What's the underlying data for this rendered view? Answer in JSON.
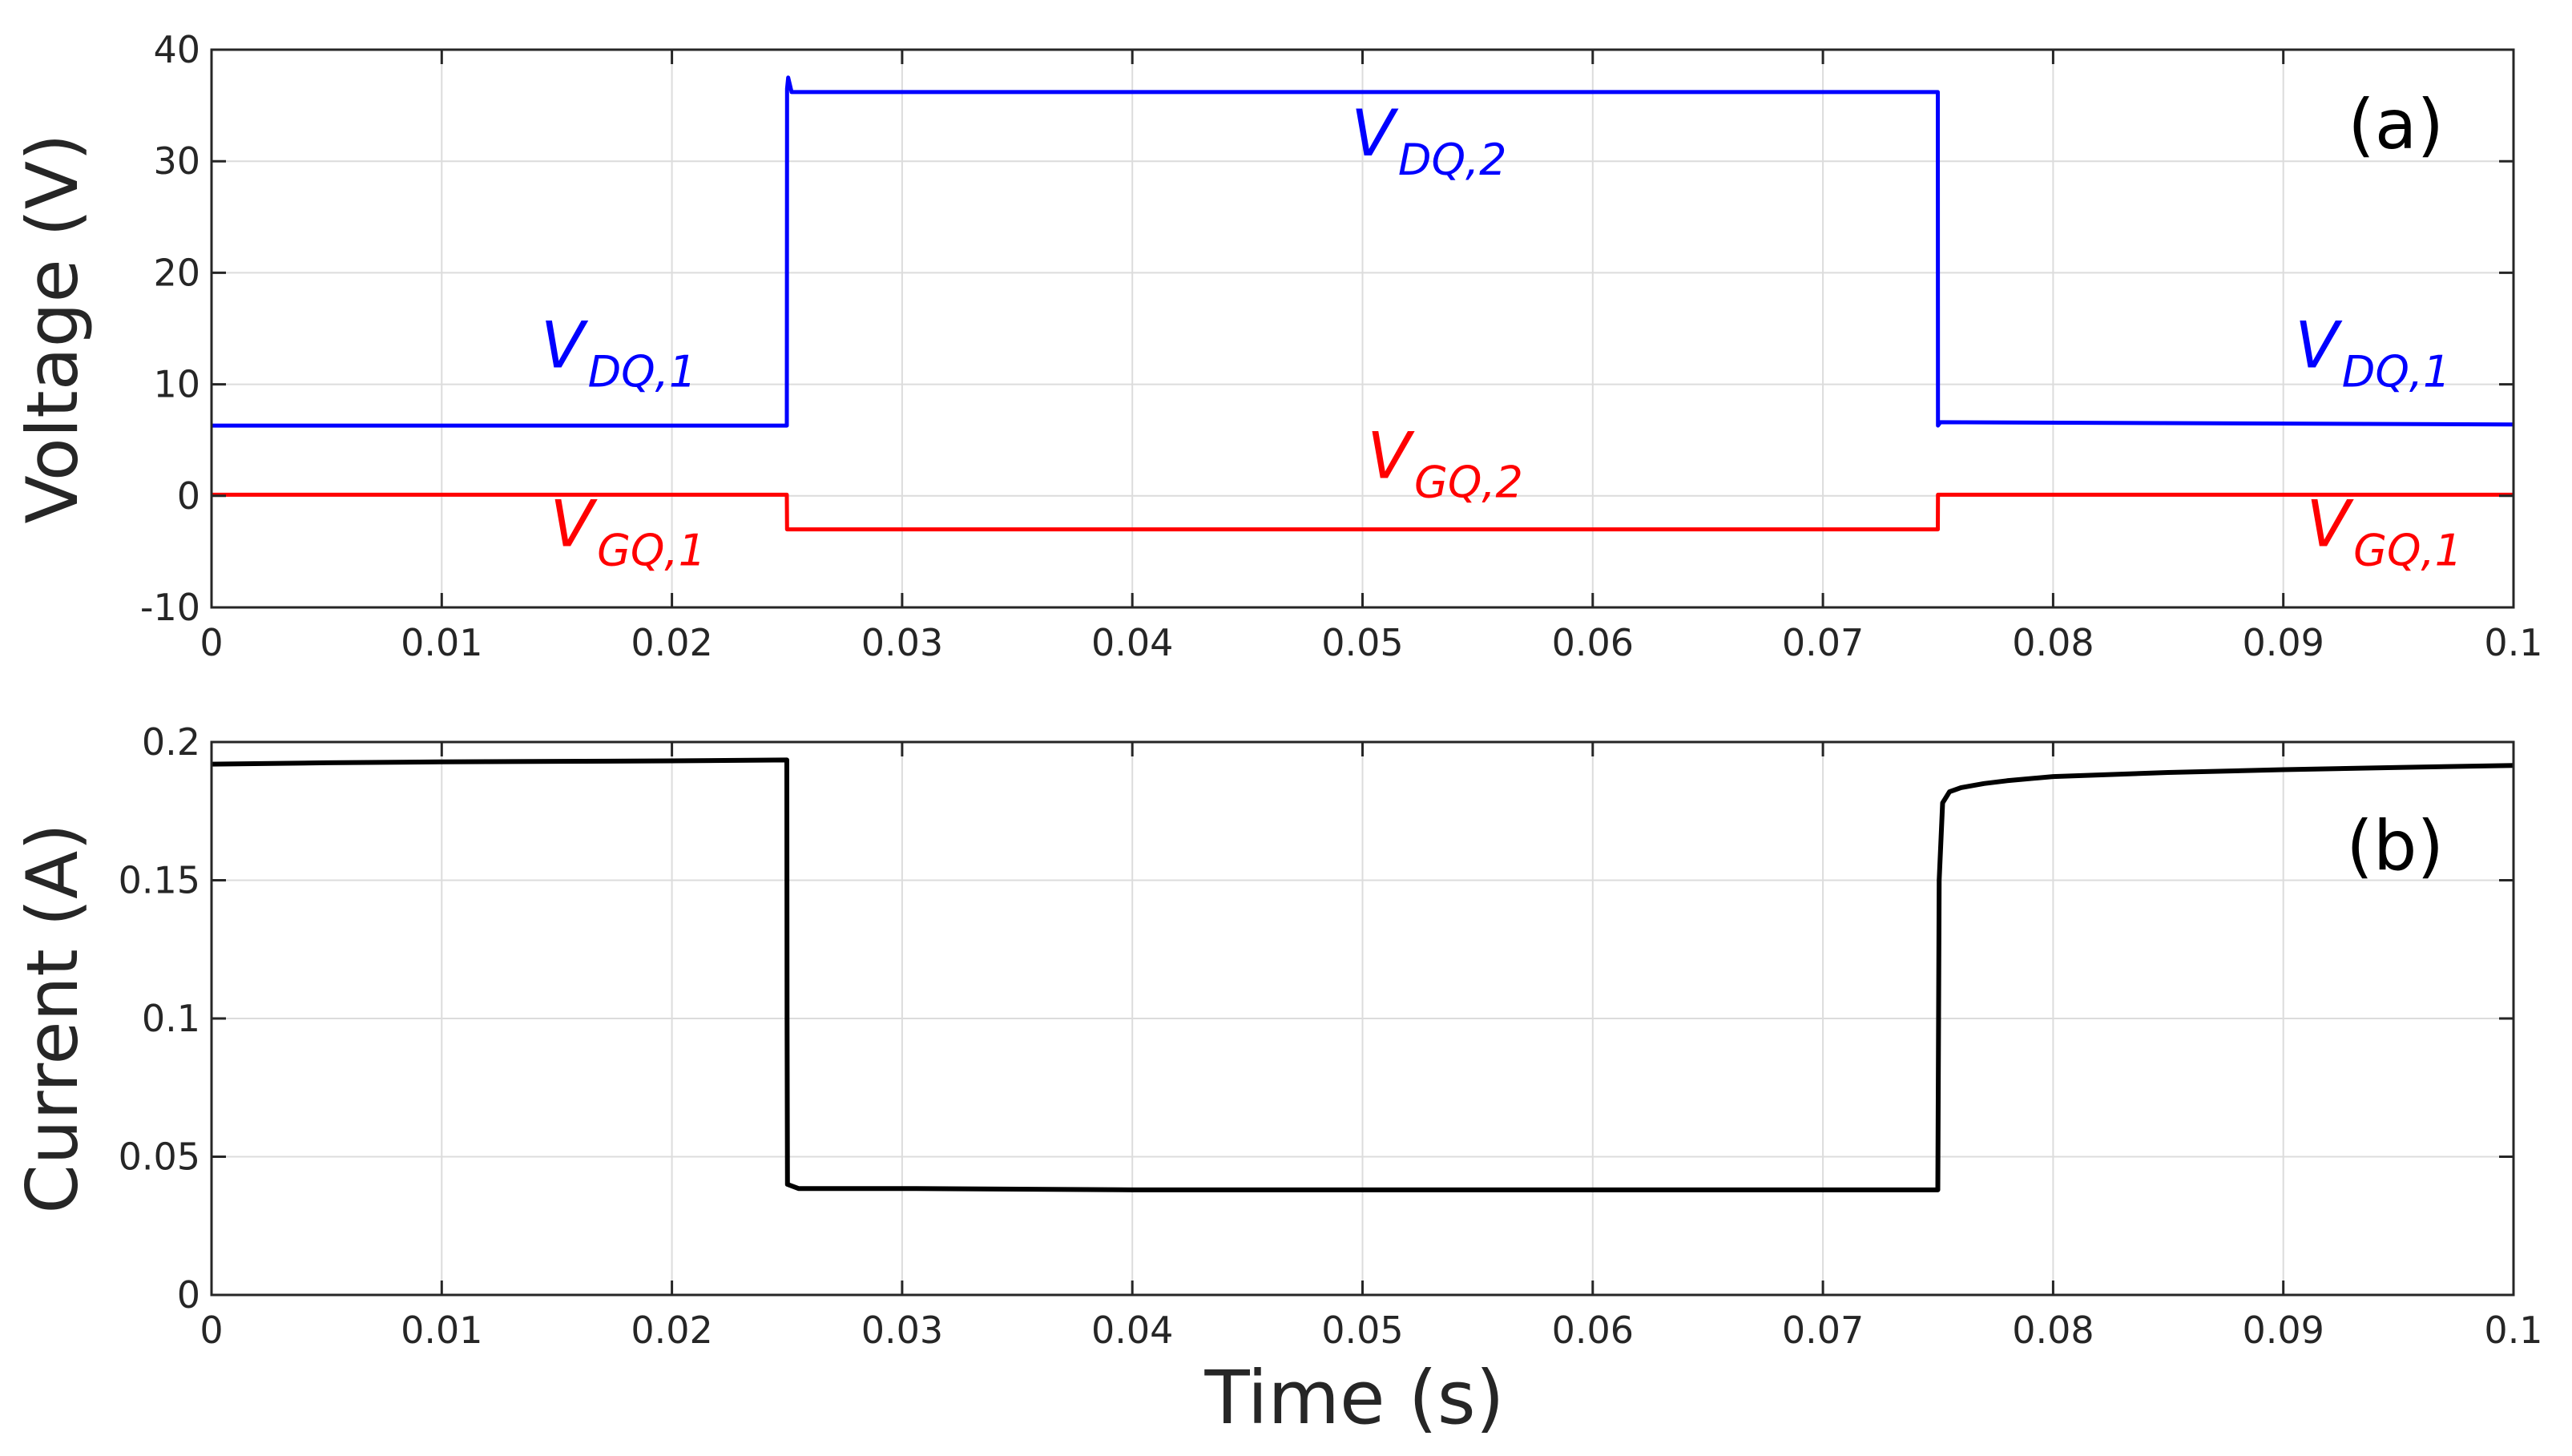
{
  "chart_data": [
    {
      "type": "line",
      "panel_label": "(a)",
      "ylabel": "Voltage (V)",
      "xlabel": "",
      "xlim": [
        0,
        0.1
      ],
      "ylim": [
        -10,
        40
      ],
      "x_ticks": [
        "0",
        "0.01",
        "0.02",
        "0.03",
        "0.04",
        "0.05",
        "0.06",
        "0.07",
        "0.08",
        "0.09",
        "0.1"
      ],
      "y_ticks": [
        "-10",
        "0",
        "10",
        "20",
        "30",
        "40"
      ],
      "grid": true,
      "series": [
        {
          "color": "#0000ff",
          "x": [
            0,
            0.02499,
            0.025,
            0.02505,
            0.0252,
            0.07499,
            0.075,
            0.0751,
            0.1
          ],
          "y": [
            6.3,
            6.3,
            36.5,
            37.5,
            36.2,
            36.2,
            6.3,
            6.6,
            6.4
          ]
        },
        {
          "color": "#ff0000",
          "x": [
            0,
            0.02499,
            0.025,
            0.07499,
            0.075,
            0.1
          ],
          "y": [
            0.1,
            0.1,
            -3.0,
            -3.0,
            0.1,
            0.1
          ]
        }
      ],
      "annotations": [
        {
          "text": "V",
          "sub": "DQ,1",
          "x": 0.0143,
          "y": 11.5,
          "color": "#0000ff"
        },
        {
          "text": "V",
          "sub": "DQ,2",
          "x": 0.0495,
          "y": 30.5,
          "color": "#0000ff"
        },
        {
          "text": "V",
          "sub": "DQ,1",
          "x": 0.0905,
          "y": 11.5,
          "color": "#0000ff"
        },
        {
          "text": "V",
          "sub": "GQ,1",
          "x": 0.0147,
          "y": -4.5,
          "color": "#ff0000"
        },
        {
          "text": "V",
          "sub": "GQ,2",
          "x": 0.0502,
          "y": 1.6,
          "color": "#ff0000"
        },
        {
          "text": "V",
          "sub": "GQ,1",
          "x": 0.091,
          "y": -4.5,
          "color": "#ff0000"
        }
      ]
    },
    {
      "type": "line",
      "panel_label": "(b)",
      "ylabel": "Current (A)",
      "xlabel": "Time (s)",
      "xlim": [
        0,
        0.1
      ],
      "ylim": [
        0,
        0.2
      ],
      "x_ticks": [
        "0",
        "0.01",
        "0.02",
        "0.03",
        "0.04",
        "0.05",
        "0.06",
        "0.07",
        "0.08",
        "0.09",
        "0.1"
      ],
      "y_ticks": [
        "0",
        "0.05",
        "0.1",
        "0.15",
        "0.2"
      ],
      "grid": true,
      "series": [
        {
          "color": "#000000",
          "x": [
            0,
            0.005,
            0.01,
            0.015,
            0.02,
            0.02499,
            0.025,
            0.02502,
            0.0255,
            0.03,
            0.04,
            0.05,
            0.06,
            0.07499,
            0.07505,
            0.0752,
            0.0755,
            0.076,
            0.077,
            0.078,
            0.08,
            0.085,
            0.09,
            0.095,
            0.1
          ],
          "y": [
            0.192,
            0.1925,
            0.1928,
            0.193,
            0.1932,
            0.1935,
            0.1,
            0.04,
            0.0385,
            0.0385,
            0.038,
            0.038,
            0.038,
            0.038,
            0.15,
            0.178,
            0.182,
            0.1835,
            0.185,
            0.186,
            0.1875,
            0.189,
            0.19,
            0.1908,
            0.1915
          ]
        }
      ],
      "annotations": []
    }
  ]
}
